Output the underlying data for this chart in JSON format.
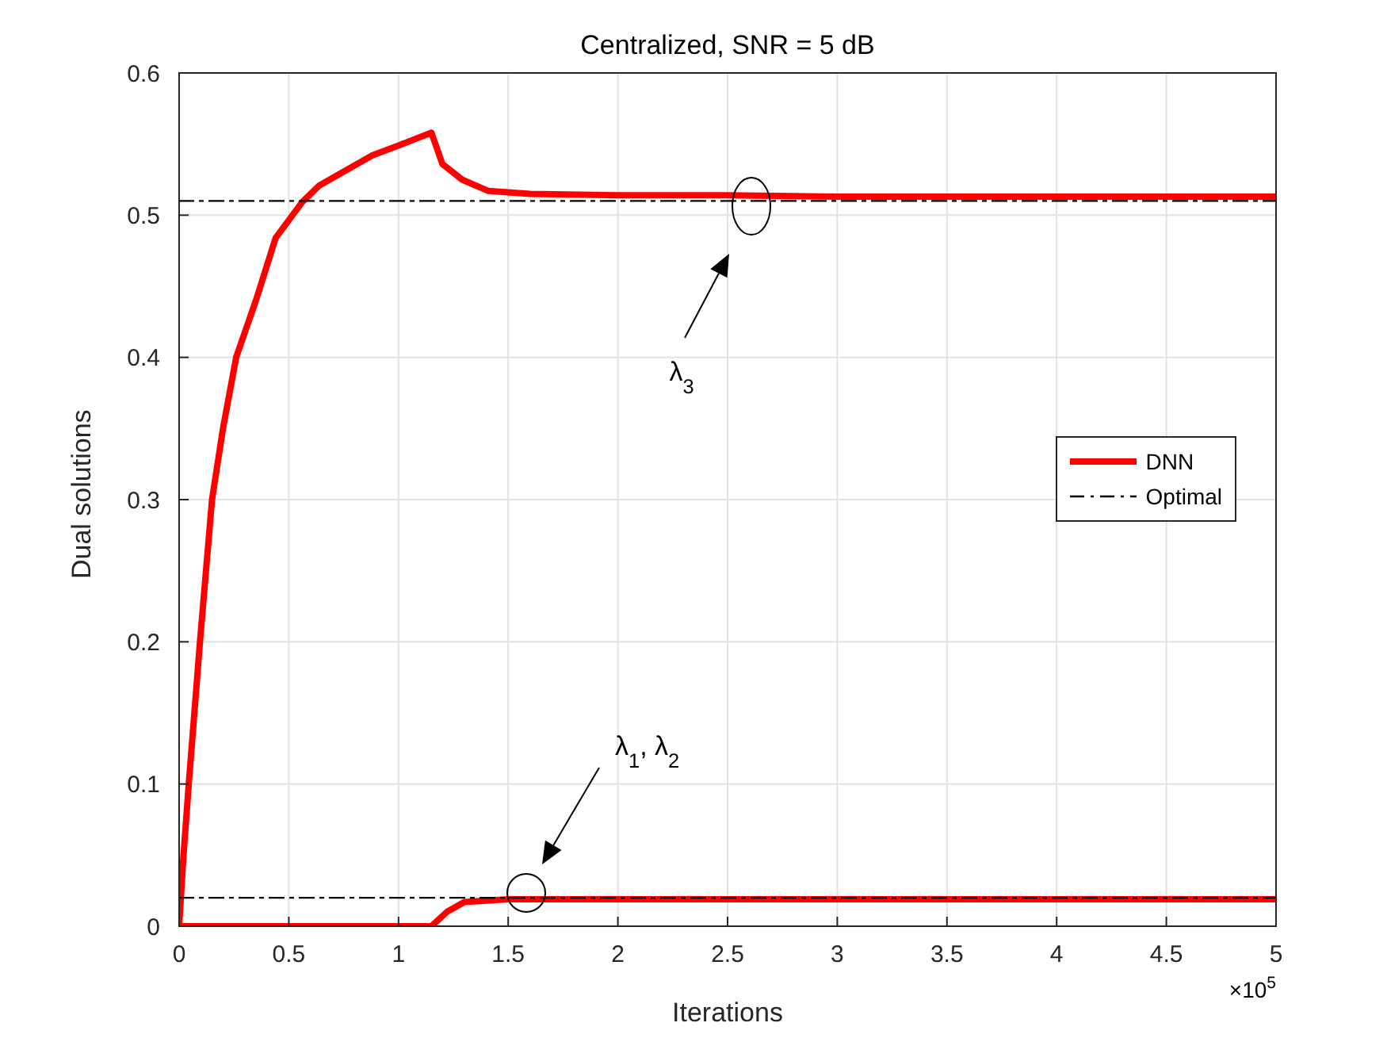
{
  "chart_data": {
    "type": "line",
    "title": "Centralized, SNR = 5 dB",
    "xlabel": "Iterations",
    "ylabel": "Dual solutions",
    "xlim": [
      0,
      5
    ],
    "ylim": [
      0,
      0.6
    ],
    "xticks": [
      0,
      0.5,
      1,
      1.5,
      2,
      2.5,
      3,
      3.5,
      4,
      4.5,
      5
    ],
    "yticks": [
      0,
      0.1,
      0.2,
      0.3,
      0.4,
      0.5,
      0.6
    ],
    "grid": true,
    "legend": "right",
    "marker": "none",
    "series": [
      {
        "name": "DNN",
        "color": "#ff0000",
        "line_style": "solid",
        "x": [
          0,
          0.02,
          0.044,
          0.095,
          0.15,
          0.2,
          0.26,
          0.35,
          0.44,
          0.56,
          0.64,
          0.88,
          1,
          1.15,
          1.2,
          1.29,
          1.41,
          1.6,
          2,
          2.5,
          3,
          4,
          5
        ],
        "values": [
          0,
          0.05,
          0.1,
          0.2,
          0.3,
          0.35,
          0.4,
          0.44,
          0.484,
          0.509,
          0.521,
          0.542,
          0.549,
          0.558,
          0.536,
          0.525,
          0.517,
          0.515,
          0.514,
          0.514,
          0.513,
          0.513,
          0.513
        ]
      },
      {
        "color": "#ff0000",
        "line_style": "solid",
        "x": [
          0,
          1.15,
          1.22,
          1.3,
          1.5,
          5
        ],
        "values": [
          0,
          0,
          0.01,
          0.017,
          0.019,
          0.019
        ]
      },
      {
        "name": "Optimal",
        "color": "#000000",
        "line_style": "dashed",
        "x": [
          0,
          5
        ],
        "values": [
          0.51,
          0.51
        ]
      },
      {
        "color": "#000000",
        "line_style": "dashed",
        "x": [
          0,
          5
        ],
        "values": [
          0.02,
          0.02
        ]
      }
    ],
    "annotations": [
      "λ$_{3}$",
      "λ$_{1}$, λ$_{2}$",
      "×10$^{5}$"
    ]
  }
}
